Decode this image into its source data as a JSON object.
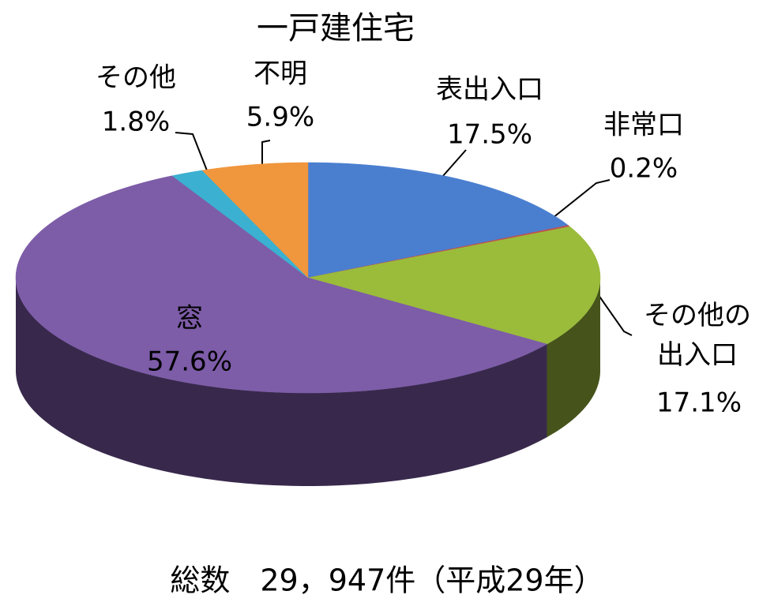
{
  "chart_data": {
    "type": "pie",
    "title": "一戸建住宅",
    "categories": [
      "表出入口",
      "非常口",
      "その他の出入口",
      "窓",
      "その他",
      "不明"
    ],
    "values": [
      17.5,
      0.2,
      17.1,
      57.6,
      1.8,
      5.9
    ],
    "value_labels": [
      "17.5%",
      "0.2%",
      "17.1%",
      "57.6%",
      "1.8%",
      "5.9%"
    ],
    "colors": [
      "#4a7fd0",
      "#c0504d",
      "#9bbb3b",
      "#7d5ca8",
      "#3bb0d0",
      "#f0963c"
    ],
    "note": "総数　29，947件（平成29年）"
  }
}
